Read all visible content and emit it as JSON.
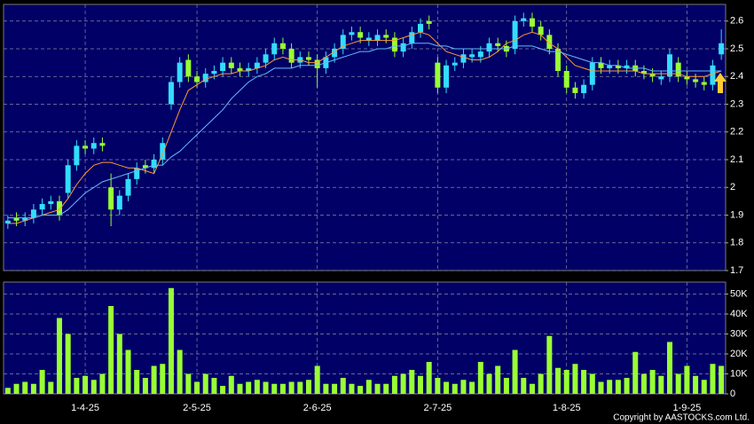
{
  "chart_data": {
    "type": "candlestick",
    "categories": [
      null,
      null,
      null,
      null,
      null,
      null,
      null,
      null,
      null,
      "1-4-25",
      null,
      null,
      null,
      null,
      null,
      null,
      null,
      null,
      null,
      null,
      null,
      null,
      "2-5-25",
      null,
      null,
      null,
      null,
      null,
      null,
      null,
      null,
      null,
      null,
      null,
      null,
      null,
      "2-6-25",
      null,
      null,
      null,
      null,
      null,
      null,
      null,
      null,
      null,
      null,
      null,
      null,
      null,
      "2-7-25",
      null,
      null,
      null,
      null,
      null,
      null,
      null,
      null,
      null,
      null,
      null,
      null,
      null,
      null,
      "1-8-25",
      null,
      null,
      null,
      null,
      null,
      null,
      null,
      null,
      null,
      null,
      null,
      null,
      null,
      "1-9-25",
      null,
      null,
      null,
      null
    ],
    "open": [
      1.87,
      1.89,
      1.88,
      1.89,
      1.92,
      1.94,
      1.95,
      1.98,
      2.08,
      2.15,
      2.14,
      2.16,
      2.0,
      1.92,
      1.97,
      2.03,
      2.08,
      2.07,
      2.1,
      2.3,
      2.38,
      2.46,
      2.4,
      2.38,
      2.41,
      2.42,
      2.45,
      2.43,
      2.42,
      2.43,
      2.45,
      2.48,
      2.52,
      2.5,
      2.45,
      2.47,
      2.46,
      2.43,
      2.47,
      2.5,
      2.55,
      2.56,
      2.53,
      2.53,
      2.55,
      2.54,
      2.49,
      2.52,
      2.56,
      2.6,
      2.45,
      2.36,
      2.44,
      2.45,
      2.47,
      2.47,
      2.49,
      2.52,
      2.51,
      2.5,
      2.6,
      2.61,
      2.58,
      2.55,
      2.5,
      2.42,
      2.36,
      2.34,
      2.37,
      2.45,
      2.43,
      2.44,
      2.43,
      2.44,
      2.42,
      2.41,
      2.39,
      2.4,
      2.45,
      2.4,
      2.39,
      2.38,
      2.37,
      2.48
    ],
    "high": [
      1.9,
      1.91,
      1.91,
      1.94,
      1.96,
      1.97,
      1.97,
      2.1,
      2.17,
      2.17,
      2.18,
      2.18,
      2.05,
      1.99,
      2.05,
      2.09,
      2.1,
      2.12,
      2.18,
      2.4,
      2.47,
      2.48,
      2.42,
      2.43,
      2.44,
      2.47,
      2.47,
      2.45,
      2.45,
      2.47,
      2.5,
      2.54,
      2.54,
      2.52,
      2.49,
      2.49,
      2.48,
      2.49,
      2.52,
      2.57,
      2.58,
      2.58,
      2.56,
      2.57,
      2.57,
      2.56,
      2.54,
      2.58,
      2.61,
      2.62,
      2.47,
      2.46,
      2.47,
      2.5,
      2.5,
      2.51,
      2.54,
      2.54,
      2.53,
      2.62,
      2.63,
      2.63,
      2.6,
      2.57,
      2.52,
      2.44,
      2.38,
      2.39,
      2.47,
      2.47,
      2.46,
      2.46,
      2.46,
      2.46,
      2.44,
      2.43,
      2.42,
      2.5,
      2.47,
      2.42,
      2.41,
      2.4,
      2.46,
      2.57
    ],
    "low": [
      1.85,
      1.86,
      1.86,
      1.87,
      1.9,
      1.92,
      1.88,
      1.96,
      2.06,
      2.12,
      2.12,
      2.13,
      1.86,
      1.9,
      1.95,
      2.01,
      2.05,
      2.05,
      2.08,
      2.28,
      2.36,
      2.38,
      2.36,
      2.36,
      2.39,
      2.4,
      2.41,
      2.4,
      2.4,
      2.41,
      2.43,
      2.46,
      2.48,
      2.43,
      2.43,
      2.44,
      2.36,
      2.41,
      2.45,
      2.48,
      2.53,
      2.52,
      2.51,
      2.51,
      2.52,
      2.47,
      2.47,
      2.5,
      2.54,
      2.57,
      2.34,
      2.34,
      2.42,
      2.43,
      2.45,
      2.45,
      2.47,
      2.49,
      2.47,
      2.48,
      2.58,
      2.56,
      2.53,
      2.48,
      2.4,
      2.34,
      2.32,
      2.32,
      2.35,
      2.41,
      2.41,
      2.41,
      2.41,
      2.4,
      2.39,
      2.38,
      2.37,
      2.38,
      2.38,
      2.37,
      2.36,
      2.35,
      2.35,
      2.46
    ],
    "close": [
      1.88,
      1.88,
      1.89,
      1.92,
      1.94,
      1.95,
      1.9,
      2.08,
      2.15,
      2.14,
      2.16,
      2.15,
      1.92,
      1.97,
      2.03,
      2.07,
      2.07,
      2.1,
      2.16,
      2.38,
      2.45,
      2.4,
      2.38,
      2.41,
      2.42,
      2.45,
      2.43,
      2.42,
      2.43,
      2.45,
      2.48,
      2.52,
      2.5,
      2.45,
      2.47,
      2.46,
      2.43,
      2.47,
      2.5,
      2.55,
      2.56,
      2.54,
      2.54,
      2.55,
      2.54,
      2.49,
      2.52,
      2.56,
      2.59,
      2.59,
      2.36,
      2.44,
      2.45,
      2.48,
      2.48,
      2.49,
      2.52,
      2.51,
      2.49,
      2.6,
      2.61,
      2.58,
      2.55,
      2.5,
      2.42,
      2.36,
      2.34,
      2.37,
      2.45,
      2.43,
      2.44,
      2.43,
      2.44,
      2.42,
      2.41,
      2.4,
      2.4,
      2.48,
      2.4,
      2.39,
      2.38,
      2.37,
      2.44,
      2.52
    ],
    "up_color": "#33ddff",
    "down_color": "#99ff33",
    "moving_averages": [
      {
        "color": "#ff9933",
        "values": [
          1.87,
          1.87,
          1.88,
          1.89,
          1.9,
          1.91,
          1.92,
          1.96,
          2.01,
          2.05,
          2.08,
          2.09,
          2.09,
          2.08,
          2.07,
          2.07,
          2.06,
          2.05,
          2.12,
          2.2,
          2.28,
          2.35,
          2.37,
          2.39,
          2.4,
          2.41,
          2.41,
          2.42,
          2.42,
          2.43,
          2.44,
          2.46,
          2.47,
          2.46,
          2.46,
          2.45,
          2.45,
          2.47,
          2.49,
          2.51,
          2.52,
          2.53,
          2.53,
          2.53,
          2.53,
          2.53,
          2.54,
          2.55,
          2.56,
          2.55,
          2.52,
          2.49,
          2.48,
          2.47,
          2.46,
          2.46,
          2.47,
          2.49,
          2.52,
          2.53,
          2.55,
          2.56,
          2.55,
          2.52,
          2.5,
          2.47,
          2.44,
          2.43,
          2.42,
          2.42,
          2.42,
          2.42,
          2.42,
          2.42,
          2.41,
          2.41,
          2.41,
          2.41,
          2.41,
          2.4,
          2.4,
          2.4,
          2.41,
          2.42
        ]
      },
      {
        "color": "#66bbff",
        "values": [
          1.89,
          1.89,
          1.89,
          1.89,
          1.9,
          1.9,
          1.9,
          1.92,
          1.95,
          1.98,
          2.0,
          2.02,
          2.03,
          2.04,
          2.05,
          2.06,
          2.07,
          2.08,
          2.08,
          2.11,
          2.13,
          2.16,
          2.19,
          2.22,
          2.25,
          2.28,
          2.32,
          2.35,
          2.38,
          2.4,
          2.41,
          2.43,
          2.43,
          2.43,
          2.44,
          2.44,
          2.44,
          2.45,
          2.46,
          2.47,
          2.48,
          2.49,
          2.49,
          2.5,
          2.5,
          2.51,
          2.51,
          2.52,
          2.52,
          2.52,
          2.51,
          2.51,
          2.5,
          2.5,
          2.5,
          2.5,
          2.5,
          2.5,
          2.5,
          2.51,
          2.51,
          2.51,
          2.5,
          2.49,
          2.49,
          2.48,
          2.47,
          2.46,
          2.45,
          2.45,
          2.44,
          2.44,
          2.43,
          2.43,
          2.43,
          2.42,
          2.42,
          2.42,
          2.42,
          2.42,
          2.42,
          2.42,
          2.42,
          2.42
        ]
      }
    ],
    "ylim": [
      1.7,
      2.66
    ],
    "yticks": [
      1.7,
      1.8,
      1.9,
      2,
      2.1,
      2.2,
      2.3,
      2.4,
      2.5,
      2.6
    ],
    "grid": true,
    "volume": {
      "color": "#99ff33",
      "values": [
        3000,
        5000,
        6000,
        5000,
        12000,
        6000,
        38000,
        30000,
        8000,
        9000,
        7000,
        10000,
        44000,
        30000,
        22000,
        12000,
        8000,
        14000,
        15000,
        53000,
        22000,
        10000,
        6000,
        10000,
        8000,
        4000,
        9000,
        5000,
        6000,
        7000,
        6000,
        5000,
        5000,
        6000,
        6000,
        7000,
        14000,
        5000,
        5000,
        8000,
        5000,
        4000,
        7000,
        5000,
        5000,
        9000,
        10000,
        12000,
        9000,
        16000,
        8000,
        6000,
        5000,
        7000,
        6000,
        16000,
        10000,
        14000,
        8000,
        22000,
        8000,
        5000,
        10000,
        29000,
        13000,
        12000,
        15000,
        12000,
        10000,
        6000,
        7000,
        7000,
        8000,
        21000,
        10000,
        12000,
        9000,
        26000,
        10000,
        14000,
        9000,
        7000,
        15000,
        14000
      ],
      "ylim": [
        0,
        56000
      ],
      "yticks": [
        0,
        {
          "value": 10000,
          "label": "10K"
        },
        {
          "value": 20000,
          "label": "20K"
        },
        {
          "value": 30000,
          "label": "30K"
        },
        {
          "value": 40000,
          "label": "40K"
        },
        {
          "value": 50000,
          "label": "50K"
        }
      ]
    },
    "copyright": "Copyright by AASTOCKS.com Ltd."
  }
}
